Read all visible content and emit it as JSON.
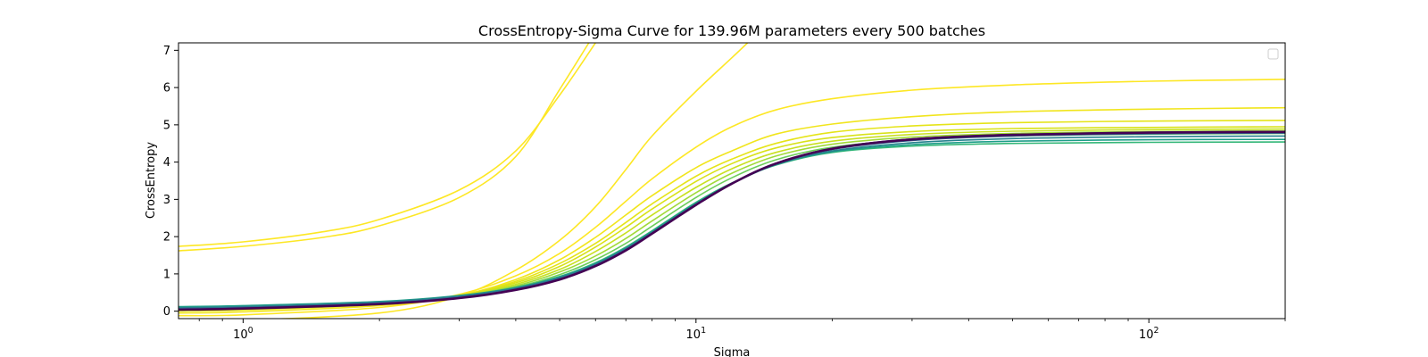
{
  "chart_data": {
    "type": "line",
    "title": "CrossEntropy-Sigma Curve for 139.96M parameters every 500 batches",
    "xlabel": "Sigma",
    "ylabel": "CrossEntropy",
    "xscale": "log",
    "xlim": [
      0.72,
      200
    ],
    "ylim": [
      -0.2,
      7.2
    ],
    "xticks": [
      {
        "value": 1,
        "base": "10",
        "exp": "0"
      },
      {
        "value": 10,
        "base": "10",
        "exp": "1"
      },
      {
        "value": 100,
        "base": "10",
        "exp": "2"
      }
    ],
    "yticks": [
      0,
      1,
      2,
      3,
      4,
      5,
      6,
      7
    ],
    "grid": false,
    "legend": {
      "position": "top-right",
      "entries": []
    },
    "colormap": "viridis (late checkpoints yellow, final dark purple)",
    "series": [
      {
        "color": "#fde725",
        "x": [
          0.72,
          1,
          1.5,
          2,
          3,
          4,
          5,
          6
        ],
        "values": [
          1.74,
          1.86,
          2.13,
          2.46,
          3.25,
          4.3,
          5.8,
          7.2
        ]
      },
      {
        "color": "#fde725",
        "x": [
          0.72,
          1,
          1.5,
          2,
          3,
          4,
          5,
          5.8
        ],
        "values": [
          1.62,
          1.74,
          1.98,
          2.29,
          3.05,
          4.15,
          5.95,
          7.2
        ]
      },
      {
        "color": "#fde725",
        "x": [
          0.72,
          1,
          2,
          3,
          4,
          5,
          6,
          7,
          8,
          10,
          12,
          13
        ],
        "values": [
          -0.3,
          -0.25,
          -0.05,
          0.4,
          1.1,
          1.9,
          2.8,
          3.8,
          4.7,
          5.9,
          6.8,
          7.2
        ]
      },
      {
        "color": "#fde725",
        "x": [
          0.72,
          1,
          2,
          3,
          4,
          5,
          6,
          7,
          8,
          10,
          12,
          15,
          20,
          30,
          50,
          100,
          200
        ],
        "values": [
          -0.12,
          -0.1,
          0.1,
          0.45,
          0.95,
          1.55,
          2.25,
          2.95,
          3.55,
          4.4,
          4.95,
          5.4,
          5.7,
          5.93,
          6.07,
          6.17,
          6.22
        ]
      },
      {
        "color": "#f1e51d",
        "x": [
          0.72,
          1,
          2,
          3,
          4,
          5,
          6,
          7,
          8,
          10,
          12,
          15,
          20,
          30,
          50,
          100,
          200
        ],
        "values": [
          -0.05,
          -0.02,
          0.15,
          0.42,
          0.85,
          1.38,
          1.98,
          2.58,
          3.1,
          3.85,
          4.3,
          4.75,
          5.02,
          5.22,
          5.35,
          5.42,
          5.46
        ]
      },
      {
        "color": "#e5e419",
        "x": [
          0.72,
          1,
          2,
          3,
          4,
          5,
          6,
          7,
          8,
          10,
          12,
          15,
          20,
          30,
          50,
          100,
          200
        ],
        "values": [
          0.0,
          0.03,
          0.18,
          0.42,
          0.8,
          1.28,
          1.82,
          2.38,
          2.88,
          3.62,
          4.08,
          4.5,
          4.8,
          4.97,
          5.06,
          5.1,
          5.12
        ]
      },
      {
        "color": "#d8e219",
        "x": [
          0.72,
          1,
          2,
          3,
          4,
          5,
          6,
          7,
          8,
          10,
          12,
          15,
          20,
          30,
          50,
          100,
          200
        ],
        "values": [
          0.02,
          0.05,
          0.2,
          0.42,
          0.76,
          1.2,
          1.72,
          2.25,
          2.74,
          3.48,
          3.96,
          4.38,
          4.66,
          4.82,
          4.9,
          4.93,
          4.95
        ]
      },
      {
        "color": "#c8e020",
        "x": [
          0.72,
          1,
          2,
          3,
          4,
          5,
          6,
          7,
          8,
          10,
          12,
          15,
          20,
          30,
          50,
          100,
          200
        ],
        "values": [
          0.03,
          0.06,
          0.2,
          0.41,
          0.72,
          1.12,
          1.6,
          2.1,
          2.58,
          3.32,
          3.82,
          4.26,
          4.56,
          4.74,
          4.83,
          4.87,
          4.89
        ]
      },
      {
        "color": "#a0da39",
        "x": [
          0.72,
          1,
          2,
          3,
          4,
          5,
          6,
          7,
          8,
          10,
          12,
          15,
          20,
          30,
          50,
          100,
          200
        ],
        "values": [
          0.05,
          0.08,
          0.22,
          0.4,
          0.68,
          1.05,
          1.48,
          1.95,
          2.42,
          3.18,
          3.7,
          4.16,
          4.48,
          4.67,
          4.77,
          4.82,
          4.84
        ]
      },
      {
        "color": "#6ccd5a",
        "x": [
          0.72,
          1,
          2,
          3,
          4,
          5,
          6,
          7,
          8,
          10,
          12,
          15,
          20,
          30,
          50,
          100,
          200
        ],
        "values": [
          0.07,
          0.1,
          0.23,
          0.4,
          0.65,
          0.98,
          1.38,
          1.82,
          2.28,
          3.05,
          3.58,
          4.06,
          4.4,
          4.6,
          4.7,
          4.75,
          4.77
        ]
      },
      {
        "color": "#35b779",
        "x": [
          0.72,
          1,
          2,
          3,
          4,
          5,
          6,
          7,
          8,
          10,
          12,
          15,
          20,
          30,
          50,
          100,
          200
        ],
        "values": [
          0.1,
          0.13,
          0.25,
          0.41,
          0.63,
          0.93,
          1.3,
          1.72,
          2.16,
          2.92,
          3.44,
          3.92,
          4.26,
          4.43,
          4.5,
          4.53,
          4.54
        ]
      },
      {
        "color": "#1f9e89",
        "x": [
          0.72,
          1,
          2,
          3,
          4,
          5,
          6,
          7,
          8,
          10,
          12,
          15,
          20,
          30,
          50,
          100,
          200
        ],
        "values": [
          0.12,
          0.15,
          0.26,
          0.42,
          0.63,
          0.92,
          1.28,
          1.7,
          2.14,
          2.9,
          3.43,
          3.93,
          4.28,
          4.47,
          4.56,
          4.6,
          4.61
        ]
      },
      {
        "color": "#26828e",
        "x": [
          0.72,
          1,
          2,
          3,
          4,
          5,
          6,
          7,
          8,
          10,
          12,
          15,
          20,
          30,
          50,
          100,
          200
        ],
        "values": [
          0.09,
          0.12,
          0.24,
          0.4,
          0.62,
          0.9,
          1.26,
          1.68,
          2.12,
          2.88,
          3.42,
          3.93,
          4.3,
          4.52,
          4.63,
          4.68,
          4.7
        ]
      },
      {
        "color": "#31688e",
        "x": [
          0.72,
          1,
          2,
          3,
          4,
          5,
          6,
          7,
          8,
          10,
          12,
          15,
          20,
          30,
          50,
          100,
          200
        ],
        "values": [
          0.07,
          0.1,
          0.22,
          0.38,
          0.6,
          0.88,
          1.24,
          1.66,
          2.1,
          2.87,
          3.42,
          3.95,
          4.34,
          4.58,
          4.7,
          4.76,
          4.78
        ]
      },
      {
        "color": "#443983",
        "x": [
          0.72,
          1,
          2,
          3,
          4,
          5,
          6,
          7,
          8,
          10,
          12,
          15,
          20,
          30,
          50,
          100,
          200
        ],
        "values": [
          0.05,
          0.08,
          0.2,
          0.36,
          0.58,
          0.86,
          1.22,
          1.64,
          2.09,
          2.86,
          3.43,
          3.97,
          4.37,
          4.62,
          4.74,
          4.8,
          4.82
        ]
      },
      {
        "color": "#440154",
        "x": [
          0.72,
          1,
          2,
          3,
          4,
          5,
          6,
          7,
          8,
          10,
          12,
          15,
          20,
          30,
          50,
          100,
          200
        ],
        "values": [
          0.04,
          0.07,
          0.19,
          0.35,
          0.57,
          0.85,
          1.21,
          1.63,
          2.08,
          2.85,
          3.42,
          3.96,
          4.36,
          4.61,
          4.73,
          4.79,
          4.81
        ]
      }
    ]
  }
}
